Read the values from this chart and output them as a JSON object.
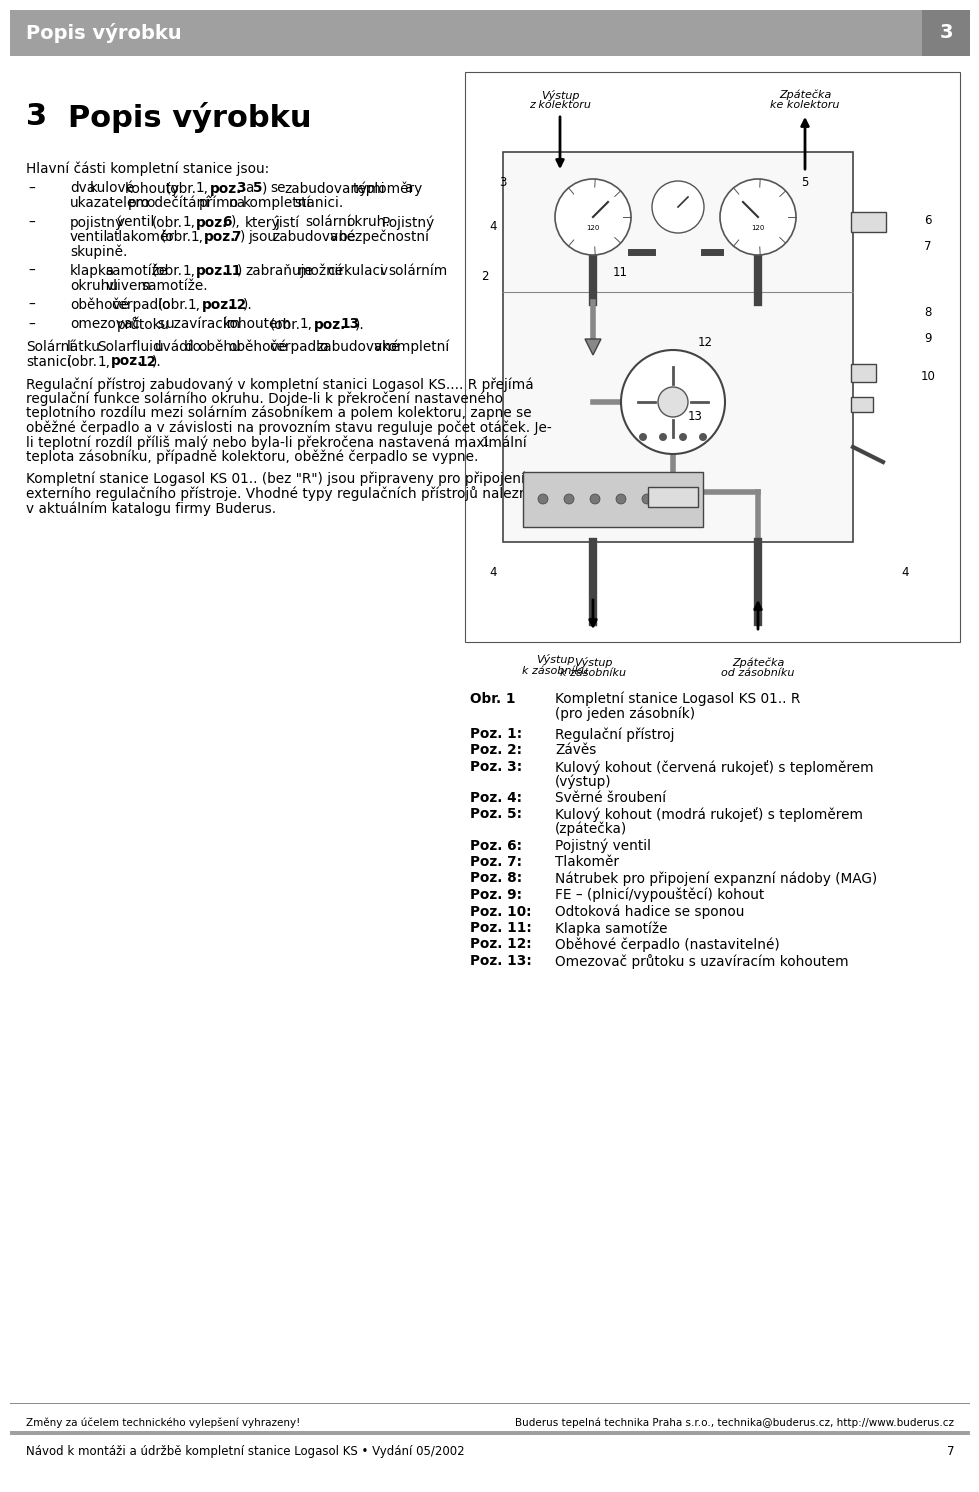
{
  "header_bg": "#a0a0a0",
  "header_text": "Popis výrobku",
  "header_number": "3",
  "header_text_color": "#ffffff",
  "page_bg": "#ffffff",
  "body_intro": "Hlavní části kompletní stanice jsou:",
  "bullet1_normal1": "dva kulové kohouty (obr. 1, ",
  "bullet1_bold1": "poz. 3",
  "bullet1_normal2": " a ",
  "bullet1_bold2": "5",
  "bullet1_normal3": ") se zabudovanými teploměry a ukazatelem pro odečítání přímo na kompletní stanici.",
  "bullet2_normal1": "pojistný ventil (obr. 1, ",
  "bullet2_bold1": "poz. 6",
  "bullet2_normal2": "), který jistí solární okruh. Pojistný ventil a tlakoměr (obr. 1, ",
  "bullet2_bold2": "poz. 7",
  "bullet2_normal3": ") jsou zabudované v bezpečnostní skupině.",
  "bullet3_normal1": "klapka samotíže (obr. 1, ",
  "bullet3_bold1": "poz. 11",
  "bullet3_normal2": ") zabraňuje možné cirkulaci v solárním okruhu vlivem samotíže.",
  "bullet4_normal1": "oběhové čerpadlo (obr. 1, ",
  "bullet4_bold1": "poz. 12",
  "bullet4_normal2": ").",
  "bullet5_normal1": "omezovač průtoku s uzavíracím kohoutem (obr. 1,",
  "bullet5_bold1": "poz. 13",
  "bullet5_normal2": ").",
  "para1_normal1": "Solární látku Solarfluid uvádí do oběhu oběhové čerpadlo zabudované v kompletní stanici (obr. 1, ",
  "para1_bold1": "poz. 12",
  "para1_normal2": ").",
  "para2": "Regulační přístroj zabudovaný v kompletní stanici Logasol KS.... R přejímá regulační funkce solárního okruhu. Dojde-li k překročení nastaveného teplotního rozdílu mezi solárním zásobníkem a polem kolektoru, zapne se oběžné čerpadlo a v závislosti na provozním stavu reguluje počet otáček. Je-li teplotní rozdíl příliš malý nebo byla-li překročena nastavená maximální teplota zásobníku, případně kolektoru, oběžné čerpadlo se vypne.",
  "para3": "Kompletní stanice Logasol KS 01.. (bez \"R\") jsou připraveny pro připojení externího regulačního přístroje. Vhodné typy regulačních přístrojů naleznete v aktuálním katalogu firmy Buderus.",
  "diag_top_left_label": "Výstup\nz kolektoru",
  "diag_top_right_label": "Zpátečka\nke kolektoru",
  "diag_bot_left_label": "Výstup\nk zásobníku",
  "diag_bot_right_label": "Zpátečka\nod zásobníku",
  "obr_bold": "Obr. 1",
  "obr_text": "Kompletní stanice Logasol KS 01.. R\n(pro jeden zásobník)",
  "poz_items": [
    [
      "Poz. 1:",
      "Regulační přístroj"
    ],
    [
      "Poz. 2:",
      "Závěs"
    ],
    [
      "Poz. 3:",
      "Kulový kohout (červená rukojeť) s teploměrem\n(výstup)"
    ],
    [
      "Poz. 4:",
      "Svěrné šroubení"
    ],
    [
      "Poz. 5:",
      "Kulový kohout (modrá rukojeť) s teploměrem\n(zpátečka)"
    ],
    [
      "Poz. 6:",
      "Pojistný ventil"
    ],
    [
      "Poz. 7:",
      "Tlakoměr"
    ],
    [
      "Poz. 8:",
      "Nátrubek pro připojení expanzní nádoby (MAG)"
    ],
    [
      "Poz. 9:",
      "FE – (plnicí/vypouštěcí) kohout"
    ],
    [
      "Poz. 10:",
      "Odtoková hadice se sponou"
    ],
    [
      "Poz. 11:",
      "Klapka samotíže"
    ],
    [
      "Poz. 12:",
      "Oběhové čerpadlo (nastavitelné)"
    ],
    [
      "Poz. 13:",
      "Omezovač průtoku s uzavíracím kohoutem"
    ]
  ],
  "footer_left": "Změny za účelem technického vylepšení vyhrazeny!",
  "footer_right": "Buderus tepelná technika Praha s.r.o., technika@buderus.cz, http://www.buderus.cz",
  "footer_bottom": "Návod k montáži a údržbě kompletní stanice Logasol KS • Vydání 05/2002",
  "footer_page": "7",
  "footer_bar_color": "#a0a0a0"
}
